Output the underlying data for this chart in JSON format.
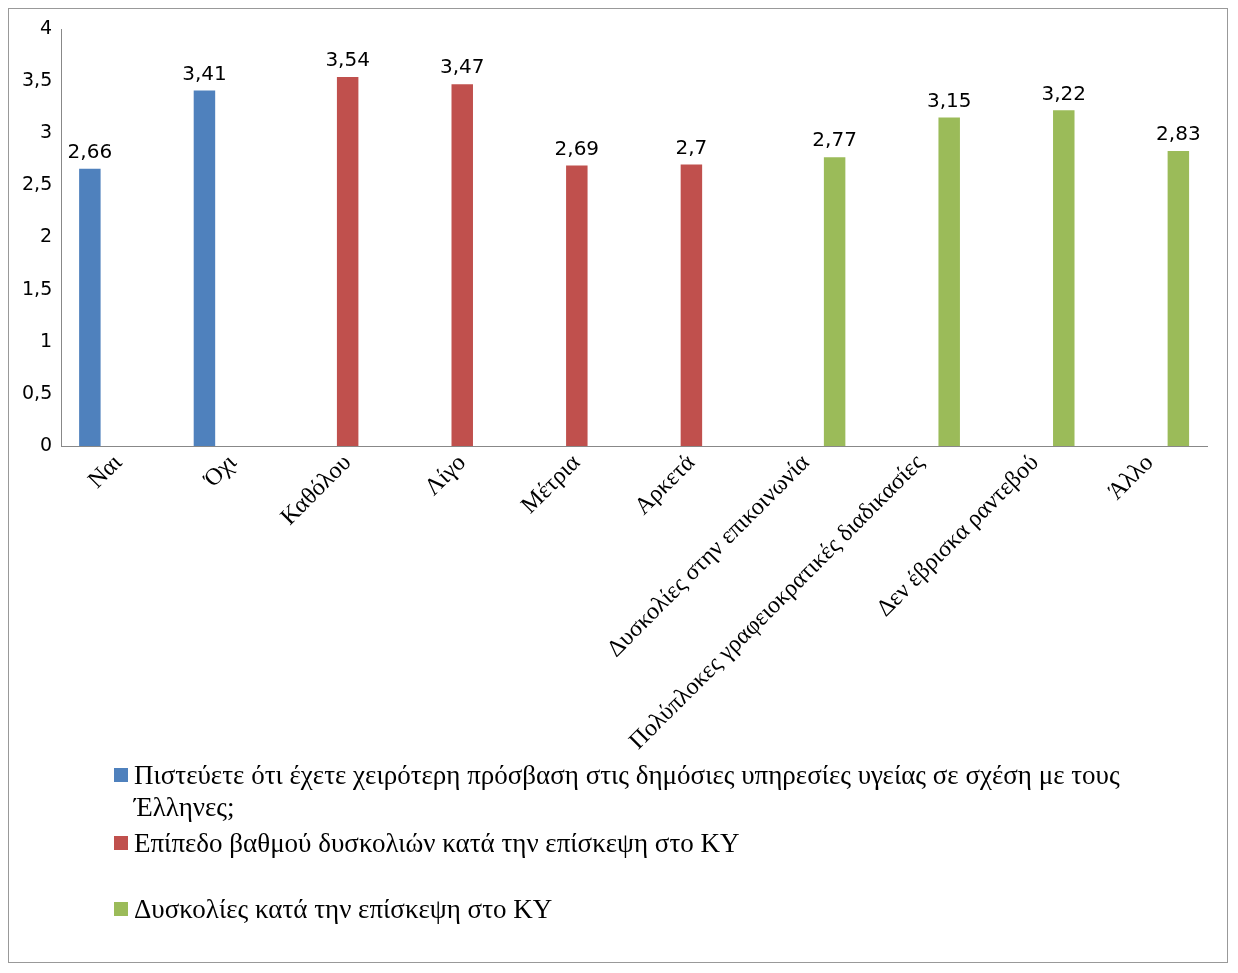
{
  "chart_data": {
    "type": "bar",
    "categories": [
      "Ναι",
      "Όχι",
      "Καθόλου",
      "Λίγο",
      "Μέτρια",
      "Αρκετά",
      "Δυσκολίες στην επικοινωνία",
      "Πολύπλοκες γραφειοκρατικές διαδικασίες",
      "Δεν έβρισκα ραντεβού",
      "Άλλο"
    ],
    "series": [
      {
        "name": "Πιστεύετε ότι έχετε χειρότερη πρόσβαση στις δημόσιες υπηρεσίες υγείας σε σχέση με τους Έλληνες;",
        "color": "#4f81bd",
        "values": [
          2.66,
          3.41,
          null,
          null,
          null,
          null,
          null,
          null,
          null,
          null
        ],
        "value_labels": [
          "2,66",
          "3,41",
          null,
          null,
          null,
          null,
          null,
          null,
          null,
          null
        ]
      },
      {
        "name": "Επίπεδο βαθμού δυσκολιών κατά την επίσκεψη στο ΚΥ",
        "color": "#c0504d",
        "values": [
          null,
          null,
          3.54,
          3.47,
          2.69,
          2.7,
          null,
          null,
          null,
          null
        ],
        "value_labels": [
          null,
          null,
          "3,54",
          "3,47",
          "2,69",
          "2,7",
          null,
          null,
          null,
          null
        ]
      },
      {
        "name": "Δυσκολίες κατά την επίσκεψη στο ΚΥ",
        "color": "#9bbb59",
        "values": [
          null,
          null,
          null,
          null,
          null,
          null,
          2.77,
          3.15,
          3.22,
          2.83
        ],
        "value_labels": [
          null,
          null,
          null,
          null,
          null,
          null,
          "2,77",
          "3,15",
          "3,22",
          "2,83"
        ]
      }
    ],
    "ylim": [
      0,
      4
    ],
    "yticks": [
      {
        "value": 0,
        "label": "0"
      },
      {
        "value": 0.5,
        "label": "0,5"
      },
      {
        "value": 1,
        "label": "1"
      },
      {
        "value": 1.5,
        "label": "1,5"
      },
      {
        "value": 2,
        "label": "2"
      },
      {
        "value": 2.5,
        "label": "2,5"
      },
      {
        "value": 3,
        "label": "3"
      },
      {
        "value": 3.5,
        "label": "3,5"
      },
      {
        "value": 4,
        "label": "4"
      }
    ],
    "grid": false,
    "legend": "bottom"
  }
}
